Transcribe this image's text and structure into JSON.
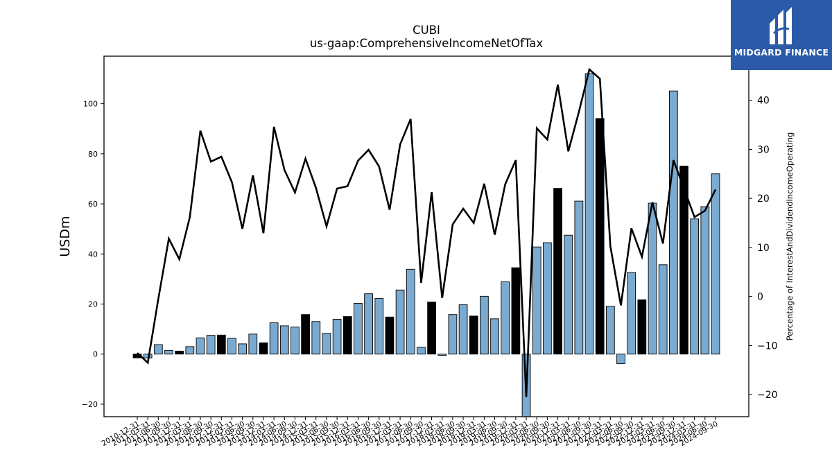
{
  "colors": {
    "bar": "#7aaad0",
    "bar_highlight": "#000000",
    "line": "#000000",
    "logo_bg": "#2a5aa8"
  },
  "logo": {
    "text": "MIDGARD FINANCE",
    "icon": "midgard-logo-icon"
  },
  "chart_data": {
    "type": "bar",
    "title": "CUBI",
    "subtitle": "us-gaap:ComprehensiveIncomeNetOfTax",
    "ylabel": "USDm",
    "ylabel_right": "Percentage of InterestAndDividendIncomeOperating",
    "ylim": [
      -25,
      119
    ],
    "ylim_right": [
      -24.5,
      49
    ],
    "yticks": [
      -20,
      0,
      20,
      40,
      60,
      80,
      100
    ],
    "yticks_right": [
      -20,
      -10,
      0,
      10,
      20,
      30,
      40
    ],
    "grid": false,
    "categories": [
      "2010-12-31",
      "2011-03-31",
      "2011-06-30",
      "2011-09-30",
      "2011-12-31",
      "2012-03-31",
      "2012-06-30",
      "2012-09-30",
      "2012-12-31",
      "2013-03-31",
      "2013-06-30",
      "2013-09-30",
      "2013-12-31",
      "2014-03-31",
      "2014-06-30",
      "2014-09-30",
      "2014-12-31",
      "2015-03-31",
      "2015-06-30",
      "2015-09-30",
      "2015-12-31",
      "2016-03-31",
      "2016-06-30",
      "2016-09-30",
      "2016-12-31",
      "2017-03-31",
      "2017-06-30",
      "2017-09-30",
      "2017-12-31",
      "2018-03-31",
      "2018-06-30",
      "2018-09-30",
      "2018-12-31",
      "2019-03-31",
      "2019-06-30",
      "2019-09-30",
      "2019-12-31",
      "2020-03-31",
      "2020-06-30",
      "2020-09-30",
      "2020-12-31",
      "2021-03-31",
      "2021-06-30",
      "2021-09-30",
      "2021-12-31",
      "2022-03-31",
      "2022-06-30",
      "2022-09-30",
      "2022-12-31",
      "2023-03-31",
      "2023-06-30",
      "2023-09-30",
      "2023-12-31",
      "2024-03-31",
      "2024-06-30",
      "2024-09-30"
    ],
    "series": [
      {
        "type": "bar",
        "axis": "left",
        "values": [
          -1.5,
          -1.5,
          3.8,
          1.5,
          1.2,
          3.0,
          6.5,
          7.5,
          7.6,
          6.3,
          4.1,
          8.0,
          4.5,
          12.5,
          11.3,
          10.8,
          15.8,
          13.0,
          8.3,
          13.9,
          15.0,
          20.3,
          24.1,
          22.2,
          14.8,
          25.6,
          33.9,
          2.7,
          20.8,
          -0.5,
          15.8,
          19.7,
          15.2,
          23.1,
          14.1,
          28.9,
          34.5,
          -26.0,
          42.8,
          44.5,
          66.2,
          47.5,
          61.1,
          112.0,
          94.1,
          19.1,
          -3.8,
          32.6,
          21.7,
          60.3,
          35.7,
          105.1,
          75.1,
          54.0,
          58.9,
          72.0
        ],
        "highlight": [
          true,
          false,
          false,
          false,
          true,
          false,
          false,
          false,
          true,
          false,
          false,
          false,
          true,
          false,
          false,
          false,
          true,
          false,
          false,
          false,
          true,
          false,
          false,
          false,
          true,
          false,
          false,
          false,
          true,
          false,
          false,
          false,
          true,
          false,
          false,
          false,
          true,
          false,
          false,
          false,
          true,
          false,
          false,
          false,
          true,
          false,
          false,
          false,
          true,
          false,
          false,
          false,
          true,
          false,
          false,
          false
        ]
      },
      {
        "type": "line",
        "axis": "right",
        "values": [
          -11.5,
          -13.5,
          -0.5,
          11.8,
          7.6,
          16.2,
          33.8,
          27.5,
          28.5,
          23.3,
          13.8,
          24.7,
          12.9,
          34.6,
          25.8,
          21.2,
          28.1,
          22.1,
          14.3,
          22.0,
          22.5,
          27.7,
          29.9,
          26.5,
          17.7,
          31.0,
          36.2,
          2.8,
          21.3,
          -0.3,
          14.7,
          17.9,
          15.0,
          23.0,
          12.6,
          22.9,
          27.8,
          -20.5,
          34.3,
          32.0,
          43.2,
          29.6,
          37.6,
          46.3,
          44.4,
          10.2,
          -1.8,
          13.9,
          8.1,
          19.2,
          10.8,
          27.8,
          22.0,
          16.2,
          17.5,
          21.8
        ]
      }
    ]
  }
}
